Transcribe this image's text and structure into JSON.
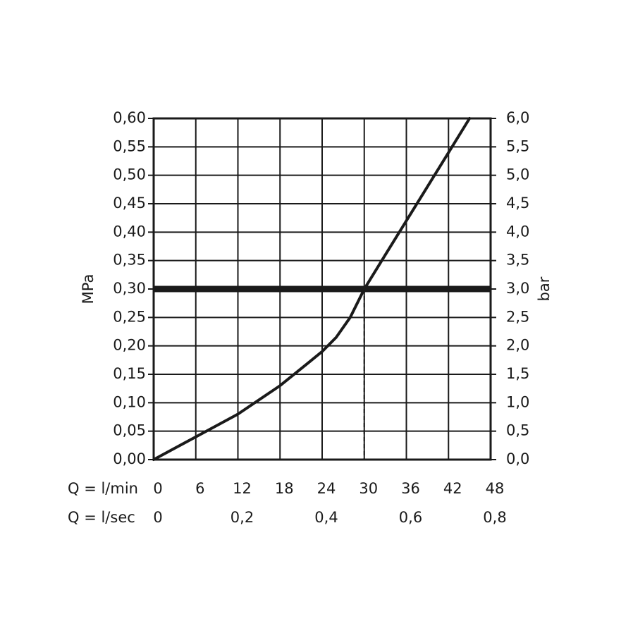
{
  "chart_data": {
    "type": "line",
    "title": "",
    "ylabel_left": "MPa",
    "ylabel_right": "bar",
    "x_row_labels": [
      "Q = l/min",
      "Q = l/sec"
    ],
    "x_ticks_lmin": [
      "0",
      "6",
      "12",
      "18",
      "24",
      "30",
      "36",
      "42",
      "48"
    ],
    "x_ticks_lsec": [
      "0",
      "0,2",
      "0,4",
      "0,6",
      "0,8"
    ],
    "x_ticks_lsec_values": [
      0,
      12,
      24,
      36,
      48
    ],
    "xlim": [
      0,
      48
    ],
    "ylim": [
      0,
      0.6
    ],
    "y_ticks_mpa": [
      "0,00",
      "0,05",
      "0,10",
      "0,15",
      "0,20",
      "0,25",
      "0,30",
      "0,35",
      "0,40",
      "0,45",
      "0,50",
      "0,55",
      "0,60"
    ],
    "y_ticks_bar": [
      "0,0",
      "0,5",
      "1,0",
      "1,5",
      "2,0",
      "2,5",
      "3,0",
      "3,5",
      "4,0",
      "4,5",
      "5,0",
      "5,5",
      "6,0"
    ],
    "grid": true,
    "series": [
      {
        "x": [
          0,
          6,
          12,
          18,
          22,
          24,
          26,
          28,
          29,
          30,
          33,
          36,
          39,
          42,
          45
        ],
        "y": [
          0,
          0.04,
          0.08,
          0.13,
          0.17,
          0.19,
          0.215,
          0.25,
          0.275,
          0.3,
          0.36,
          0.42,
          0.48,
          0.54,
          0.6
        ]
      }
    ],
    "reference_line": {
      "y": 0.3
    },
    "marker_line": {
      "x": 30
    }
  }
}
